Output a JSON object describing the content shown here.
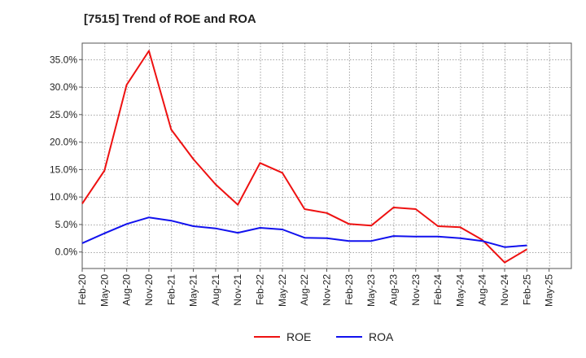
{
  "chart_data": {
    "type": "line",
    "title": "[7515]  Trend of ROE and ROA",
    "xlabel": "",
    "ylabel": "",
    "x": [
      "Feb-20",
      "May-20",
      "Aug-20",
      "Nov-20",
      "Feb-21",
      "May-21",
      "Aug-21",
      "Nov-21",
      "Feb-22",
      "May-22",
      "Aug-22",
      "Nov-22",
      "Feb-23",
      "May-23",
      "Aug-23",
      "Nov-23",
      "Feb-24",
      "May-24",
      "Aug-24",
      "Nov-24",
      "Feb-25"
    ],
    "x_tick_labels": [
      "Feb-20",
      "May-20",
      "Aug-20",
      "Nov-20",
      "Feb-21",
      "May-21",
      "Aug-21",
      "Nov-21",
      "Feb-22",
      "May-22",
      "Aug-22",
      "Nov-22",
      "Feb-23",
      "May-23",
      "Aug-23",
      "Nov-23",
      "Feb-24",
      "May-24",
      "Aug-24",
      "Nov-24",
      "Feb-25",
      "May-25"
    ],
    "y_ticks": [
      0,
      5,
      10,
      15,
      20,
      25,
      30,
      35
    ],
    "y_tick_labels": [
      "0.0%",
      "5.0%",
      "10.0%",
      "15.0%",
      "20.0%",
      "25.0%",
      "30.0%",
      "35.0%"
    ],
    "ylim": [
      -3,
      38
    ],
    "grid": true,
    "legend_position": "bottom-center",
    "series": [
      {
        "name": "ROE",
        "color": "#ee1111",
        "values": [
          8.8,
          14.8,
          30.4,
          36.6,
          22.3,
          16.9,
          12.3,
          8.6,
          16.2,
          14.4,
          7.8,
          7.1,
          5.1,
          4.8,
          8.1,
          7.8,
          4.7,
          4.5,
          2.2,
          -1.9,
          0.5
        ]
      },
      {
        "name": "ROA",
        "color": "#1111ee",
        "values": [
          1.6,
          3.4,
          5.1,
          6.3,
          5.7,
          4.7,
          4.3,
          3.5,
          4.4,
          4.1,
          2.6,
          2.5,
          2.0,
          2.0,
          2.9,
          2.8,
          2.8,
          2.5,
          2.0,
          0.9,
          1.2
        ]
      }
    ]
  }
}
